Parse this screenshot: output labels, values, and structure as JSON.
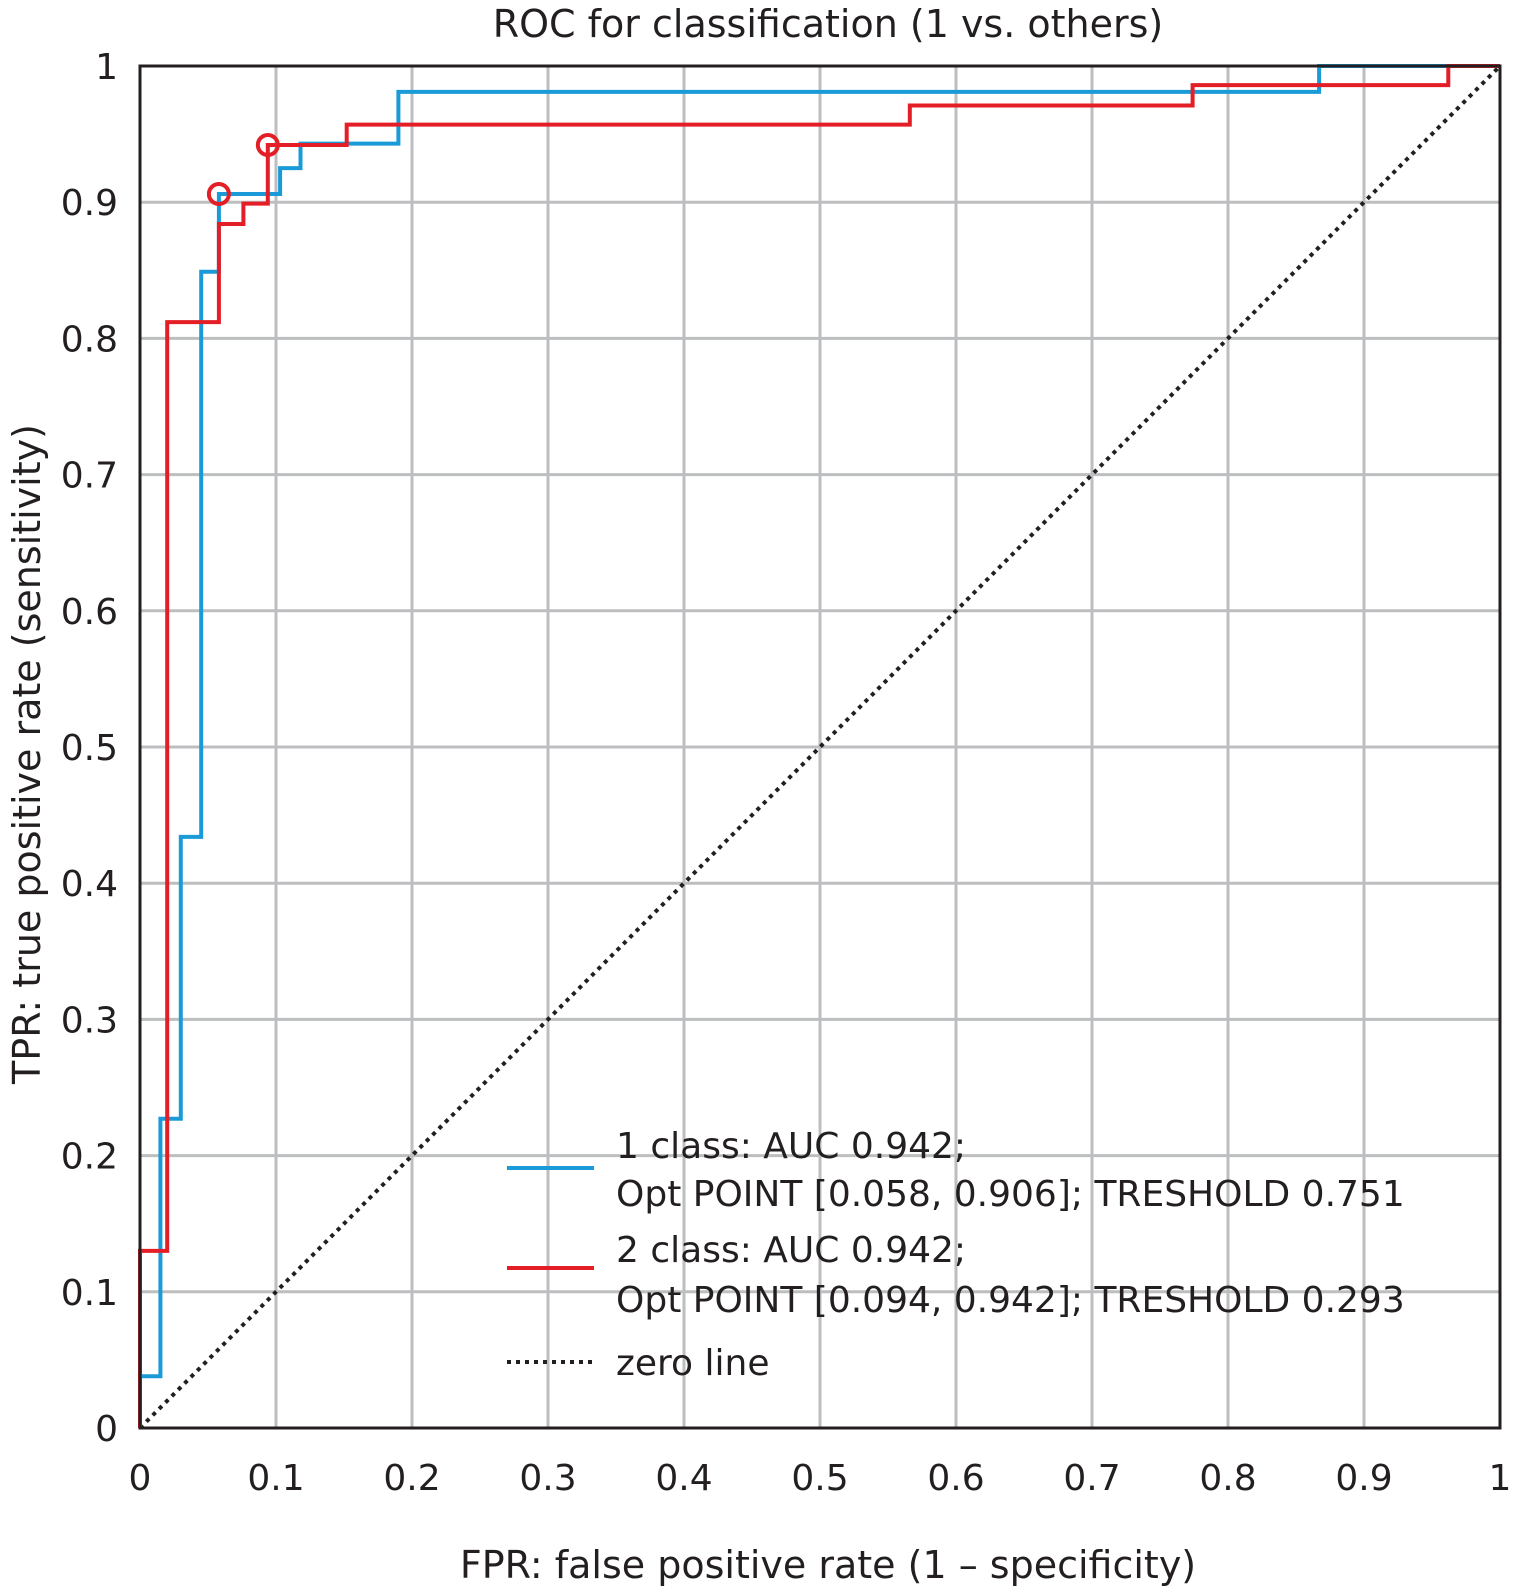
{
  "chart_data": {
    "type": "line",
    "title": "ROC for classification (1 vs. others)",
    "xlabel": "FPR: false positive rate (1 – specificity)",
    "ylabel": "TPR: true positive rate (sensitivity)",
    "xlim": [
      0,
      1
    ],
    "ylim": [
      0,
      1
    ],
    "grid": true,
    "x_ticks": [
      0,
      0.1,
      0.2,
      0.3,
      0.4,
      0.5,
      0.6,
      0.7,
      0.8,
      0.9,
      1
    ],
    "x_tick_labels": [
      "0",
      "0.1",
      "0.2",
      "0.3",
      "0.4",
      "0.5",
      "0.6",
      "0.7",
      "0.8",
      "0.9",
      "1"
    ],
    "y_ticks": [
      0,
      0.1,
      0.2,
      0.3,
      0.4,
      0.5,
      0.6,
      0.7,
      0.8,
      0.9,
      1
    ],
    "y_tick_labels": [
      "0",
      "0.1",
      "0.2",
      "0.3",
      "0.4",
      "0.5",
      "0.6",
      "0.7",
      "0.8",
      "0.9",
      "1"
    ],
    "legend_position": "bottom-right",
    "series": [
      {
        "name": "1 class",
        "legend_lines": [
          "1 class: AUC 0.942;",
          "Opt POINT [0.058, 0.906]; TRESHOLD 0.751"
        ],
        "color": "#1a9bd7",
        "style": "solid",
        "auc": 0.942,
        "opt_point": [
          0.058,
          0.906
        ],
        "threshold": 0.751,
        "points": [
          [
            0,
            0
          ],
          [
            0,
            0.038
          ],
          [
            0.015,
            0.038
          ],
          [
            0.015,
            0.227
          ],
          [
            0.03,
            0.227
          ],
          [
            0.03,
            0.434
          ],
          [
            0.045,
            0.434
          ],
          [
            0.045,
            0.849
          ],
          [
            0.058,
            0.849
          ],
          [
            0.058,
            0.906
          ],
          [
            0.103,
            0.906
          ],
          [
            0.103,
            0.925
          ],
          [
            0.118,
            0.925
          ],
          [
            0.118,
            0.943
          ],
          [
            0.19,
            0.943
          ],
          [
            0.19,
            0.981
          ],
          [
            0.867,
            0.981
          ],
          [
            0.867,
            1.0
          ],
          [
            1.0,
            1.0
          ]
        ]
      },
      {
        "name": "2 class",
        "legend_lines": [
          "2 class: AUC 0.942;",
          "Opt POINT [0.094, 0.942]; TRESHOLD 0.293"
        ],
        "color": "#e41e26",
        "style": "solid",
        "auc": 0.942,
        "opt_point": [
          0.094,
          0.942
        ],
        "threshold": 0.293,
        "points": [
          [
            0,
            0
          ],
          [
            0,
            0.13
          ],
          [
            0.02,
            0.13
          ],
          [
            0.02,
            0.812
          ],
          [
            0.058,
            0.812
          ],
          [
            0.058,
            0.884
          ],
          [
            0.076,
            0.884
          ],
          [
            0.076,
            0.899
          ],
          [
            0.094,
            0.899
          ],
          [
            0.094,
            0.942
          ],
          [
            0.152,
            0.942
          ],
          [
            0.152,
            0.957
          ],
          [
            0.566,
            0.957
          ],
          [
            0.566,
            0.971
          ],
          [
            0.774,
            0.971
          ],
          [
            0.774,
            0.986
          ],
          [
            0.962,
            0.986
          ],
          [
            0.962,
            1.0
          ],
          [
            1.0,
            1.0
          ]
        ]
      },
      {
        "name": "zero line",
        "legend_lines": [
          "zero line"
        ],
        "color": "#231f20",
        "style": "dotted",
        "points": [
          [
            0,
            0
          ],
          [
            1,
            1
          ]
        ]
      }
    ]
  }
}
